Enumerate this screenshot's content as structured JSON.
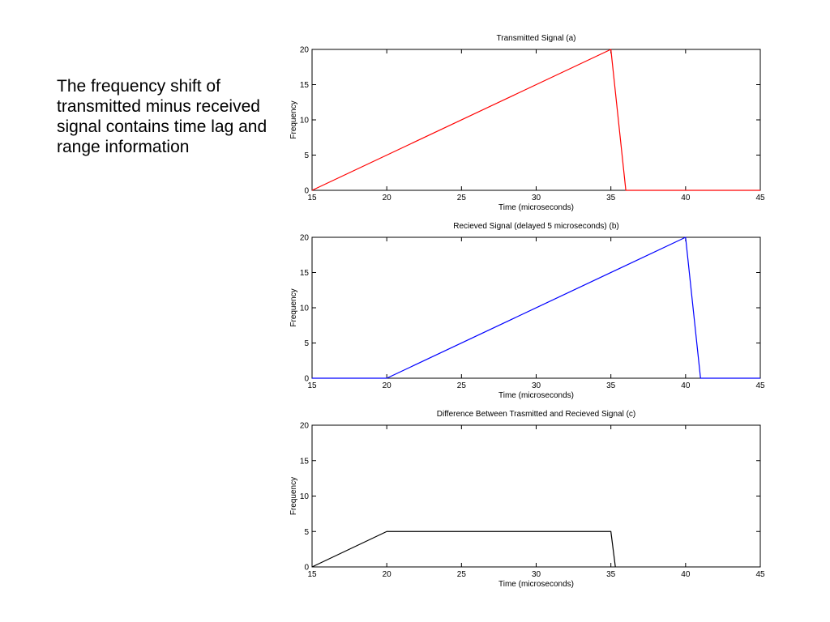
{
  "slide": {
    "caption": "The frequency shift of transmitted minus received signal contains time lag and range information"
  },
  "chart_data": [
    {
      "type": "line",
      "title": "Transmitted Signal (a)",
      "xlabel": "Time (microseconds)",
      "ylabel": "Frequency",
      "xlim": [
        15,
        45
      ],
      "ylim": [
        0,
        20
      ],
      "xticks": [
        15,
        20,
        25,
        30,
        35,
        40,
        45
      ],
      "yticks": [
        0,
        5,
        10,
        15,
        20
      ],
      "grid": false,
      "color": "#ff0000",
      "x": [
        15,
        35,
        36,
        45
      ],
      "y": [
        0,
        20,
        0,
        0
      ]
    },
    {
      "type": "line",
      "title": "Recieved Signal (delayed 5 microseconds) (b)",
      "xlabel": "Time (microseconds)",
      "ylabel": "Frequency",
      "xlim": [
        15,
        45
      ],
      "ylim": [
        0,
        20
      ],
      "xticks": [
        15,
        20,
        25,
        30,
        35,
        40,
        45
      ],
      "yticks": [
        0,
        5,
        10,
        15,
        20
      ],
      "grid": false,
      "color": "#0000ff",
      "x": [
        15,
        20,
        40,
        41,
        45
      ],
      "y": [
        0,
        0,
        20,
        0,
        0
      ]
    },
    {
      "type": "line",
      "title": "Difference Between Trasmitted and Recieved Signal (c)",
      "xlabel": "Time (microseconds)",
      "ylabel": "Frequency",
      "xlim": [
        15,
        45
      ],
      "ylim": [
        0,
        20
      ],
      "xticks": [
        15,
        20,
        25,
        30,
        35,
        40,
        45
      ],
      "yticks": [
        0,
        5,
        10,
        15,
        20
      ],
      "grid": false,
      "color": "#000000",
      "x": [
        15,
        20,
        35,
        35.3
      ],
      "y": [
        0,
        5,
        5,
        0
      ]
    }
  ]
}
